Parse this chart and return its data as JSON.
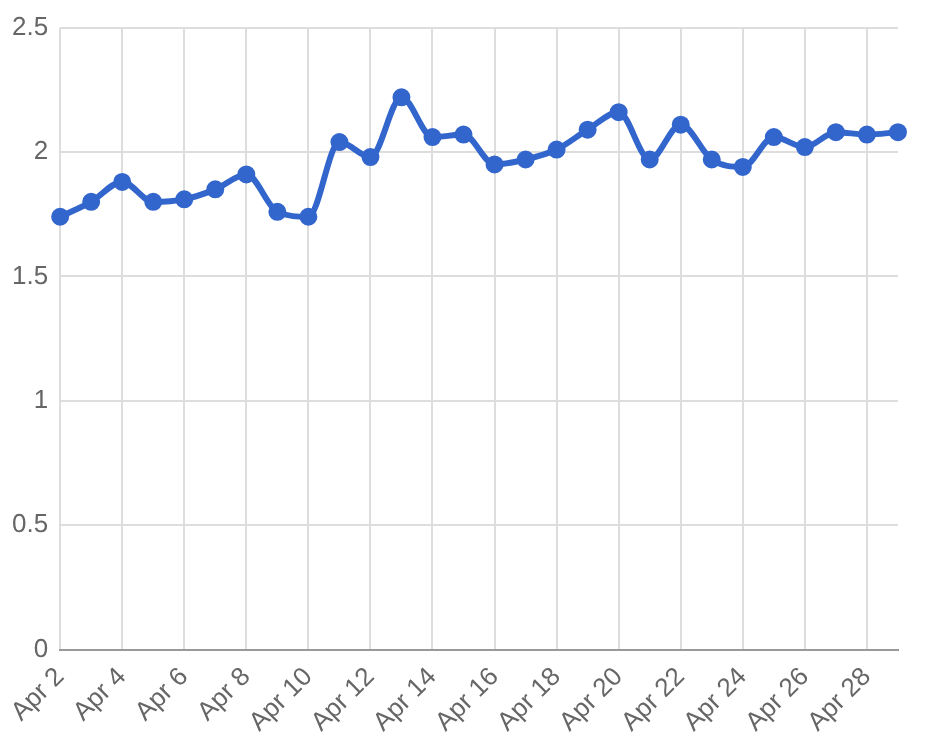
{
  "chart_data": {
    "type": "line",
    "categories": [
      "Apr 2",
      null,
      "Apr 4",
      null,
      "Apr 6",
      null,
      "Apr 8",
      null,
      "Apr 10",
      null,
      "Apr 12",
      null,
      "Apr 14",
      null,
      "Apr 16",
      null,
      "Apr 18",
      null,
      "Apr 20",
      null,
      "Apr 22",
      null,
      "Apr 24",
      null,
      "Apr 26",
      null,
      "Apr 28",
      null
    ],
    "series": [
      {
        "color": "#3366cc",
        "values": [
          1.74,
          1.8,
          1.88,
          1.8,
          1.81,
          1.85,
          1.91,
          1.76,
          1.74,
          2.04,
          1.98,
          2.22,
          2.06,
          2.07,
          1.95,
          1.97,
          2.01,
          2.09,
          2.16,
          1.97,
          2.11,
          1.97,
          1.94,
          2.06,
          2.02,
          2.08,
          2.07,
          2.08
        ]
      }
    ],
    "ylim": [
      0,
      2.5
    ],
    "yticks": [
      0,
      0.5,
      1,
      1.5,
      2,
      2.5
    ],
    "grid": true,
    "marker": "circle",
    "line_style": "solid",
    "legend": false
  }
}
